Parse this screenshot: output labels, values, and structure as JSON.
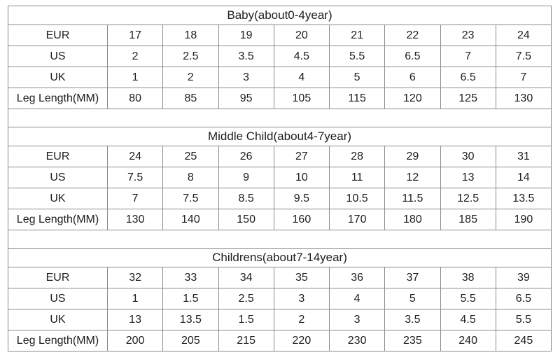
{
  "colors": {
    "background": "#ffffff",
    "border": "#8a8a8a",
    "text": "#1d1d1d"
  },
  "chart_data": [
    {
      "type": "table",
      "title": "Baby(about0-4year)",
      "rows": [
        {
          "label": "EUR",
          "values": [
            "17",
            "18",
            "19",
            "20",
            "21",
            "22",
            "23",
            "24"
          ]
        },
        {
          "label": "US",
          "values": [
            "2",
            "2.5",
            "3.5",
            "4.5",
            "5.5",
            "6.5",
            "7",
            "7.5"
          ]
        },
        {
          "label": "UK",
          "values": [
            "1",
            "2",
            "3",
            "4",
            "5",
            "6",
            "6.5",
            "7"
          ]
        },
        {
          "label": "Leg Length(MM)",
          "values": [
            "80",
            "85",
            "95",
            "105",
            "115",
            "120",
            "125",
            "130"
          ]
        }
      ]
    },
    {
      "type": "table",
      "title": "Middle Child(about4-7year)",
      "rows": [
        {
          "label": "EUR",
          "values": [
            "24",
            "25",
            "26",
            "27",
            "28",
            "29",
            "30",
            "31"
          ]
        },
        {
          "label": "US",
          "values": [
            "7.5",
            "8",
            "9",
            "10",
            "11",
            "12",
            "13",
            "14"
          ]
        },
        {
          "label": "UK",
          "values": [
            "7",
            "7.5",
            "8.5",
            "9.5",
            "10.5",
            "11.5",
            "12.5",
            "13.5"
          ]
        },
        {
          "label": "Leg Length(MM)",
          "values": [
            "130",
            "140",
            "150",
            "160",
            "170",
            "180",
            "185",
            "190"
          ]
        }
      ]
    },
    {
      "type": "table",
      "title": "Childrens(about7-14year)",
      "rows": [
        {
          "label": "EUR",
          "values": [
            "32",
            "33",
            "34",
            "35",
            "36",
            "37",
            "38",
            "39"
          ]
        },
        {
          "label": "US",
          "values": [
            "1",
            "1.5",
            "2.5",
            "3",
            "4",
            "5",
            "5.5",
            "6.5"
          ]
        },
        {
          "label": "UK",
          "values": [
            "13",
            "13.5",
            "1.5",
            "2",
            "3",
            "3.5",
            "4.5",
            "5.5"
          ]
        },
        {
          "label": "Leg Length(MM)",
          "values": [
            "200",
            "205",
            "215",
            "220",
            "230",
            "235",
            "240",
            "245"
          ]
        }
      ]
    }
  ]
}
